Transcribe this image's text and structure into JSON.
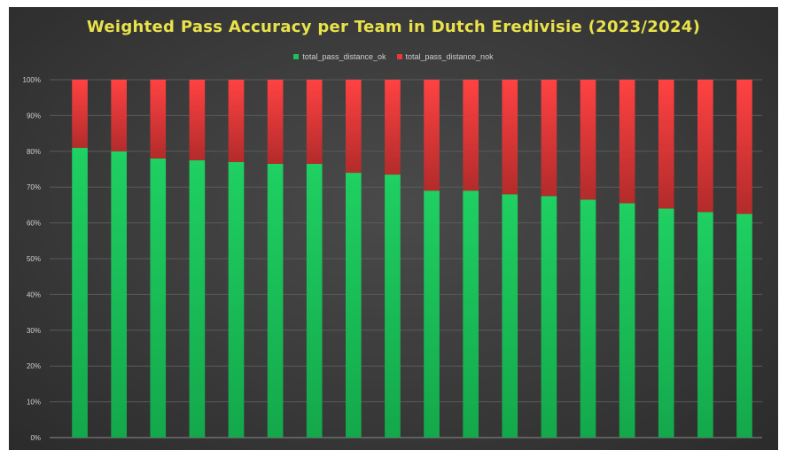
{
  "chart_data": {
    "type": "bar",
    "stacked": true,
    "title": "Weighted Pass Accuracy per Team in Dutch Eredivisie (2023/2024)",
    "legend_position": "top",
    "series": [
      {
        "name": "total_pass_distance_ok",
        "color": "#19c158",
        "values": [
          81,
          80,
          78,
          77.5,
          77,
          76.5,
          76.5,
          74,
          73.5,
          69,
          69,
          68,
          67.5,
          66.5,
          65.5,
          64,
          63,
          62.5
        ]
      },
      {
        "name": "total_pass_distance_nok",
        "color": "#e93838",
        "values": [
          19,
          20,
          22,
          22.5,
          23,
          23.5,
          23.5,
          26,
          26.5,
          31,
          31,
          32,
          32.5,
          33.5,
          34.5,
          36,
          37,
          37.5
        ]
      }
    ],
    "y_ticks": [
      "0%",
      "10%",
      "20%",
      "30%",
      "40%",
      "50%",
      "60%",
      "70%",
      "80%",
      "90%",
      "100%"
    ],
    "ylim": [
      0,
      100
    ],
    "grid": true
  }
}
